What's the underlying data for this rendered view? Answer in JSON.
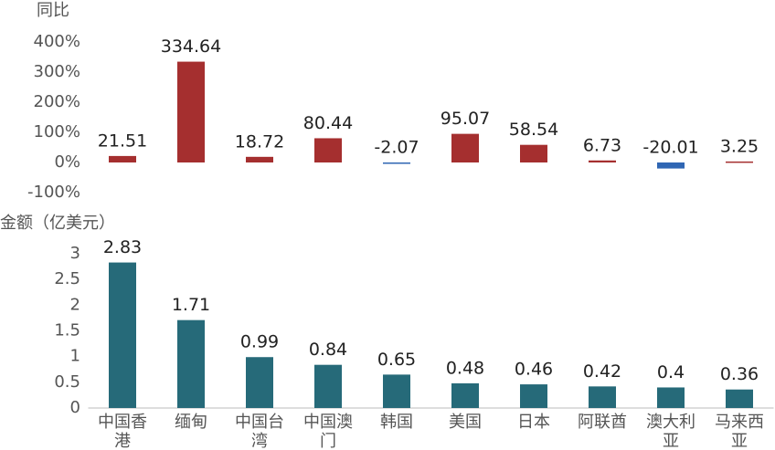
{
  "chart_data": [
    {
      "type": "bar",
      "y_label": "同比",
      "values": [
        21.51,
        334.64,
        18.72,
        80.44,
        -2.07,
        95.07,
        58.54,
        6.73,
        -20.01,
        3.25
      ],
      "color": "#a52f2f",
      "negative_color": "#2f66b3",
      "ylim": [
        -100,
        400
      ],
      "yticks": [
        {
          "value": -100,
          "label": "-100%"
        },
        {
          "value": 0,
          "label": "0%"
        },
        {
          "value": 100,
          "label": "100%"
        },
        {
          "value": 200,
          "label": "200%"
        },
        {
          "value": 300,
          "label": "300%"
        },
        {
          "value": 400,
          "label": "400%"
        }
      ]
    },
    {
      "type": "bar",
      "y_label": "金额（亿美元）",
      "categories": [
        "中国香港",
        "缅甸",
        "中国台湾",
        "中国澳门",
        "韩国",
        "美国",
        "日本",
        "阿联酋",
        "澳大利亚",
        "马来西亚"
      ],
      "values": [
        2.83,
        1.71,
        0.99,
        0.84,
        0.65,
        0.48,
        0.46,
        0.42,
        0.4,
        0.36
      ],
      "color": "#266a79",
      "ylim": [
        0,
        3
      ],
      "yticks": [
        0,
        0.5,
        1,
        1.5,
        2,
        2.5,
        3
      ]
    }
  ]
}
